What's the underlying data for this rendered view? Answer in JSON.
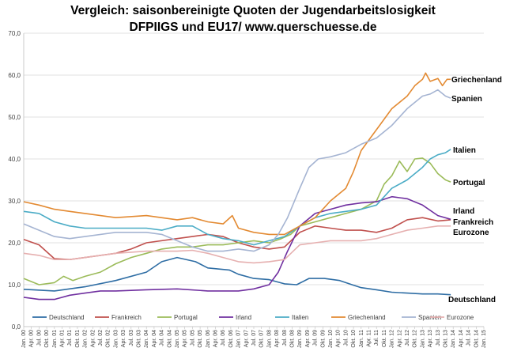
{
  "chart_data": {
    "type": "line",
    "title": "Vergleich: saisonbereinigte  Quoten der Jugendarbeitslosigkeit",
    "subtitle": "DFPIIGS und EU17/ www.querschuesse.de",
    "ylim": [
      0,
      70
    ],
    "yticks": [
      "0,0",
      "10,0",
      "20,0",
      "30,0",
      "40,0",
      "50,0",
      "60,0",
      "70,0"
    ],
    "grid": true,
    "legend_position": "bottom",
    "x_start_year": 2000,
    "x_end_year": 2015,
    "x_tick_labels": [
      "Jan. 00",
      "Apr. 00",
      "Jul. 00",
      "Okt. 00",
      "Jan. 01",
      "Apr. 01",
      "Jul. 01",
      "Okt. 01",
      "Jan. 02",
      "Apr. 02",
      "Jul. 02",
      "Okt. 02",
      "Jan. 03",
      "Apr. 03",
      "Jul. 03",
      "Okt. 03",
      "Jan. 04",
      "Apr. 04",
      "Jul. 04",
      "Okt. 04",
      "Jan. 05",
      "Apr. 05",
      "Jul. 05",
      "Okt. 05",
      "Jan. 06",
      "Apr. 06",
      "Jul. 06",
      "Okt. 06",
      "Jan. 07",
      "Apr. 07",
      "Jul. 07",
      "Okt. 07",
      "Jan. 08",
      "Apr. 08",
      "Jul. 08",
      "Okt. 08",
      "Jan. 09",
      "Apr. 09",
      "Jul. 09",
      "Okt. 09",
      "Jan. 10",
      "Apr. 10",
      "Jul. 10",
      "Okt. 10",
      "Jan. 11",
      "Apr. 11",
      "Jul. 11",
      "Okt. 11",
      "Jan. 12",
      "Apr. 12",
      "Jul. 12",
      "Okt. 12",
      "Jan. 13",
      "Apr. 13",
      "Jul. 13",
      "Okt. 13",
      "Jan. 14",
      "Apr. 14",
      "Jul. 14",
      "Okt. 14",
      "Jan. 15"
    ],
    "series": [
      {
        "name": "Deutschland",
        "color": "#2e6da4",
        "label": "Deutschland",
        "points": [
          [
            2000.0,
            8.9
          ],
          [
            2001.0,
            8.5
          ],
          [
            2002.0,
            9.5
          ],
          [
            2003.0,
            11.0
          ],
          [
            2004.0,
            13.0
          ],
          [
            2004.5,
            15.5
          ],
          [
            2005.0,
            16.5
          ],
          [
            2005.6,
            15.5
          ],
          [
            2006.0,
            14.0
          ],
          [
            2006.7,
            13.5
          ],
          [
            2007.0,
            12.5
          ],
          [
            2007.5,
            11.5
          ],
          [
            2008.0,
            11.2
          ],
          [
            2008.5,
            10.2
          ],
          [
            2008.9,
            10.0
          ],
          [
            2009.3,
            11.5
          ],
          [
            2009.8,
            11.5
          ],
          [
            2010.3,
            11.0
          ],
          [
            2010.7,
            10.0
          ],
          [
            2011.0,
            9.3
          ],
          [
            2011.5,
            8.8
          ],
          [
            2012.0,
            8.2
          ],
          [
            2012.5,
            8.0
          ],
          [
            2013.0,
            7.8
          ],
          [
            2013.5,
            7.8
          ],
          [
            2013.92,
            7.6
          ]
        ]
      },
      {
        "name": "Frankreich",
        "color": "#c0504d",
        "label": "Frankreich",
        "points": [
          [
            2000.0,
            20.8
          ],
          [
            2000.5,
            19.5
          ],
          [
            2001.0,
            16.2
          ],
          [
            2001.5,
            16.0
          ],
          [
            2002.0,
            16.5
          ],
          [
            2003.0,
            17.5
          ],
          [
            2003.5,
            18.5
          ],
          [
            2004.0,
            20.0
          ],
          [
            2005.0,
            21.0
          ],
          [
            2005.5,
            21.5
          ],
          [
            2006.0,
            22.0
          ],
          [
            2006.5,
            21.5
          ],
          [
            2007.0,
            20.0
          ],
          [
            2007.5,
            19.0
          ],
          [
            2008.0,
            18.5
          ],
          [
            2008.5,
            19.0
          ],
          [
            2009.0,
            22.5
          ],
          [
            2009.5,
            24.0
          ],
          [
            2010.0,
            23.5
          ],
          [
            2010.5,
            23.0
          ],
          [
            2011.0,
            23.0
          ],
          [
            2011.5,
            22.5
          ],
          [
            2012.0,
            23.5
          ],
          [
            2012.5,
            25.5
          ],
          [
            2013.0,
            26.0
          ],
          [
            2013.5,
            25.2
          ],
          [
            2013.92,
            25.5
          ]
        ]
      },
      {
        "name": "Portugal",
        "color": "#9bbb59",
        "label": "Portugal",
        "points": [
          [
            2000.0,
            11.5
          ],
          [
            2000.5,
            10.0
          ],
          [
            2001.0,
            10.5
          ],
          [
            2001.3,
            12.0
          ],
          [
            2001.6,
            11.0
          ],
          [
            2002.0,
            12.0
          ],
          [
            2002.5,
            13.0
          ],
          [
            2003.0,
            15.0
          ],
          [
            2003.5,
            16.5
          ],
          [
            2004.0,
            17.5
          ],
          [
            2004.5,
            18.5
          ],
          [
            2005.0,
            19.0
          ],
          [
            2005.5,
            19.0
          ],
          [
            2006.0,
            19.5
          ],
          [
            2006.5,
            19.5
          ],
          [
            2007.0,
            20.0
          ],
          [
            2007.5,
            20.5
          ],
          [
            2008.0,
            20.0
          ],
          [
            2008.4,
            21.0
          ],
          [
            2008.7,
            22.0
          ],
          [
            2009.0,
            24.0
          ],
          [
            2009.5,
            25.0
          ],
          [
            2010.0,
            26.0
          ],
          [
            2010.5,
            27.0
          ],
          [
            2011.0,
            28.0
          ],
          [
            2011.5,
            30.0
          ],
          [
            2011.75,
            34.0
          ],
          [
            2012.0,
            36.0
          ],
          [
            2012.25,
            39.5
          ],
          [
            2012.5,
            37.0
          ],
          [
            2012.75,
            40.0
          ],
          [
            2013.0,
            40.2
          ],
          [
            2013.25,
            39.0
          ],
          [
            2013.5,
            36.5
          ],
          [
            2013.75,
            35.0
          ],
          [
            2013.92,
            34.5
          ]
        ]
      },
      {
        "name": "Irland",
        "color": "#7030a0",
        "label": "Irland",
        "points": [
          [
            2000.0,
            7.0
          ],
          [
            2000.5,
            6.5
          ],
          [
            2001.0,
            6.5
          ],
          [
            2001.5,
            7.5
          ],
          [
            2002.0,
            8.0
          ],
          [
            2002.5,
            8.5
          ],
          [
            2003.0,
            8.5
          ],
          [
            2004.0,
            8.8
          ],
          [
            2005.0,
            9.0
          ],
          [
            2006.0,
            8.5
          ],
          [
            2007.0,
            8.5
          ],
          [
            2007.5,
            9.0
          ],
          [
            2008.0,
            10.0
          ],
          [
            2008.3,
            13.0
          ],
          [
            2008.6,
            18.0
          ],
          [
            2009.0,
            24.0
          ],
          [
            2009.5,
            27.0
          ],
          [
            2010.0,
            28.0
          ],
          [
            2010.5,
            29.0
          ],
          [
            2011.0,
            29.5
          ],
          [
            2011.5,
            29.8
          ],
          [
            2012.0,
            31.0
          ],
          [
            2012.5,
            30.5
          ],
          [
            2013.0,
            29.0
          ],
          [
            2013.5,
            26.5
          ],
          [
            2013.92,
            25.6
          ]
        ]
      },
      {
        "name": "Italien",
        "color": "#4bacc6",
        "label": "Italien",
        "points": [
          [
            2000.0,
            27.5
          ],
          [
            2000.5,
            27.0
          ],
          [
            2001.0,
            25.0
          ],
          [
            2001.5,
            24.0
          ],
          [
            2002.0,
            23.5
          ],
          [
            2003.0,
            23.5
          ],
          [
            2004.0,
            23.5
          ],
          [
            2004.5,
            23.0
          ],
          [
            2005.0,
            24.0
          ],
          [
            2005.5,
            24.0
          ],
          [
            2006.0,
            22.0
          ],
          [
            2006.5,
            21.0
          ],
          [
            2007.0,
            20.5
          ],
          [
            2007.5,
            19.5
          ],
          [
            2008.0,
            20.5
          ],
          [
            2008.5,
            21.5
          ],
          [
            2009.0,
            24.0
          ],
          [
            2009.5,
            26.0
          ],
          [
            2010.0,
            27.0
          ],
          [
            2010.5,
            27.5
          ],
          [
            2011.0,
            28.0
          ],
          [
            2011.5,
            29.0
          ],
          [
            2012.0,
            33.0
          ],
          [
            2012.5,
            35.0
          ],
          [
            2013.0,
            38.0
          ],
          [
            2013.25,
            40.0
          ],
          [
            2013.5,
            41.0
          ],
          [
            2013.75,
            41.5
          ],
          [
            2013.92,
            42.3
          ]
        ]
      },
      {
        "name": "Griechenland",
        "color": "#e38a32",
        "label": "Griechenland",
        "points": [
          [
            2000.0,
            29.8
          ],
          [
            2000.5,
            29.0
          ],
          [
            2001.0,
            28.0
          ],
          [
            2001.5,
            27.5
          ],
          [
            2002.0,
            27.0
          ],
          [
            2003.0,
            26.0
          ],
          [
            2004.0,
            26.5
          ],
          [
            2005.0,
            25.5
          ],
          [
            2005.5,
            26.0
          ],
          [
            2006.0,
            25.0
          ],
          [
            2006.5,
            24.5
          ],
          [
            2006.8,
            26.5
          ],
          [
            2007.0,
            23.5
          ],
          [
            2007.5,
            22.5
          ],
          [
            2008.0,
            22.0
          ],
          [
            2008.5,
            22.0
          ],
          [
            2009.0,
            24.0
          ],
          [
            2009.5,
            26.0
          ],
          [
            2010.0,
            30.0
          ],
          [
            2010.5,
            33.0
          ],
          [
            2010.75,
            37.0
          ],
          [
            2011.0,
            42.0
          ],
          [
            2011.3,
            45.0
          ],
          [
            2011.6,
            48.0
          ],
          [
            2012.0,
            52.0
          ],
          [
            2012.5,
            55.0
          ],
          [
            2012.75,
            57.5
          ],
          [
            2013.0,
            59.0
          ],
          [
            2013.1,
            60.5
          ],
          [
            2013.25,
            58.5
          ],
          [
            2013.5,
            59.2
          ],
          [
            2013.65,
            57.5
          ],
          [
            2013.8,
            59.0
          ],
          [
            2013.92,
            59.0
          ]
        ]
      },
      {
        "name": "Spanien",
        "color": "#a5b4d2",
        "label": "Spanien",
        "points": [
          [
            2000.0,
            24.5
          ],
          [
            2000.5,
            23.0
          ],
          [
            2001.0,
            21.5
          ],
          [
            2001.5,
            21.0
          ],
          [
            2002.0,
            21.5
          ],
          [
            2003.0,
            22.5
          ],
          [
            2004.0,
            22.5
          ],
          [
            2004.5,
            22.0
          ],
          [
            2005.0,
            20.5
          ],
          [
            2005.5,
            19.0
          ],
          [
            2006.0,
            18.0
          ],
          [
            2006.5,
            18.0
          ],
          [
            2007.0,
            18.5
          ],
          [
            2007.5,
            18.0
          ],
          [
            2008.0,
            19.5
          ],
          [
            2008.3,
            22.0
          ],
          [
            2008.6,
            26.0
          ],
          [
            2009.0,
            33.0
          ],
          [
            2009.3,
            38.0
          ],
          [
            2009.6,
            40.0
          ],
          [
            2010.0,
            40.5
          ],
          [
            2010.5,
            41.5
          ],
          [
            2011.0,
            43.5
          ],
          [
            2011.5,
            45.0
          ],
          [
            2012.0,
            48.0
          ],
          [
            2012.5,
            52.0
          ],
          [
            2013.0,
            55.0
          ],
          [
            2013.25,
            55.5
          ],
          [
            2013.5,
            56.5
          ],
          [
            2013.75,
            55.0
          ],
          [
            2013.92,
            54.5
          ]
        ]
      },
      {
        "name": "Eurozone",
        "color": "#e6b0b0",
        "label": "Eurozone",
        "points": [
          [
            2000.0,
            17.5
          ],
          [
            2000.5,
            17.0
          ],
          [
            2001.0,
            16.0
          ],
          [
            2001.5,
            16.0
          ],
          [
            2002.0,
            16.5
          ],
          [
            2003.0,
            17.5
          ],
          [
            2004.0,
            18.0
          ],
          [
            2005.0,
            18.0
          ],
          [
            2005.5,
            18.2
          ],
          [
            2006.0,
            17.5
          ],
          [
            2006.5,
            16.5
          ],
          [
            2007.0,
            15.5
          ],
          [
            2007.5,
            15.2
          ],
          [
            2008.0,
            15.5
          ],
          [
            2008.5,
            16.0
          ],
          [
            2009.0,
            19.5
          ],
          [
            2009.5,
            20.0
          ],
          [
            2010.0,
            20.5
          ],
          [
            2011.0,
            20.5
          ],
          [
            2011.5,
            21.0
          ],
          [
            2012.0,
            22.0
          ],
          [
            2012.5,
            23.0
          ],
          [
            2013.0,
            23.5
          ],
          [
            2013.5,
            24.0
          ],
          [
            2013.92,
            24.0
          ]
        ]
      }
    ]
  }
}
